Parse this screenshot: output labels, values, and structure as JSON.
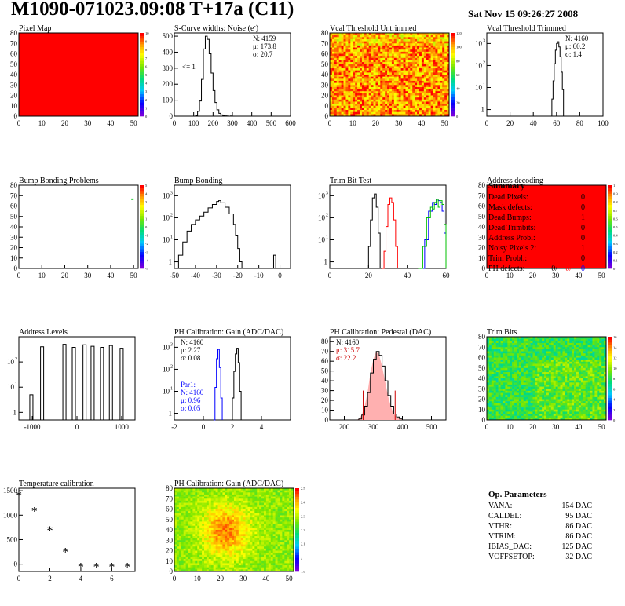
{
  "header": {
    "title": "M1090-071023.09:08 T+17a (C11)",
    "date": "Sat Nov 15 09:26:27 2008"
  },
  "colors": {
    "red": "#ff0000",
    "black": "#000000",
    "blue": "#0000ff",
    "green": "#00c000",
    "pedestal_text": "#cc0000"
  },
  "summary": {
    "title": "Summary",
    "rows": [
      {
        "label": "Dead Pixels:",
        "value": "0"
      },
      {
        "label": "Mask defects:",
        "value": "0"
      },
      {
        "label": "Dead Bumps:",
        "value": "1"
      },
      {
        "label": "Dead Trimbits:",
        "value": "0"
      },
      {
        "label": "Address Probl:",
        "value": "0"
      },
      {
        "label": "Noisy Pixels 2:",
        "value": "1"
      },
      {
        "label": "Trim Probl.:",
        "value": "0"
      }
    ],
    "ph_label": "PH defects:",
    "ph_values": [
      "0/",
      "0/",
      "0"
    ]
  },
  "op_params": {
    "title": "Op. Parameters",
    "rows": [
      {
        "label": "VANA:",
        "value": "154 DAC"
      },
      {
        "label": "CALDEL:",
        "value": "95 DAC"
      },
      {
        "label": "VTHR:",
        "value": "86 DAC"
      },
      {
        "label": "VTRIM:",
        "value": "86 DAC"
      },
      {
        "label": "IBIAS_DAC:",
        "value": "125 DAC"
      },
      {
        "label": "VOFFSETOP:",
        "value": "32 DAC"
      }
    ]
  },
  "chart_data": [
    {
      "id": "pixel-map",
      "type": "heatmap",
      "title": "Pixel Map",
      "xlim": [
        0,
        52
      ],
      "ylim": [
        0,
        80
      ],
      "xticks": [
        0,
        10,
        20,
        30,
        40,
        50
      ],
      "yticks": [
        0,
        10,
        20,
        30,
        40,
        50,
        60,
        70,
        80
      ],
      "fill": "uniform-10",
      "palette_ticks": [
        "0",
        "1",
        "2",
        "3",
        "4",
        "5",
        "6",
        "7",
        "8",
        "9",
        "10"
      ]
    },
    {
      "id": "scurve-noise",
      "type": "line",
      "title": "S-Curve widths: Noise (e",
      "title_sup": "-",
      "xlim": [
        0,
        600
      ],
      "ylim": [
        0,
        520
      ],
      "xticks": [
        0,
        100,
        200,
        300,
        400,
        500,
        600
      ],
      "yticks": [
        0,
        100,
        200,
        300,
        400,
        500
      ],
      "stats": [
        "N: 4159",
        "μ: 173.8",
        "σ: 20.7"
      ],
      "annotation": "<= 1",
      "series": [
        {
          "color": "black",
          "x": [
            100,
            110,
            120,
            130,
            140,
            150,
            160,
            170,
            180,
            190,
            200,
            210,
            220,
            230,
            240,
            250,
            260,
            270,
            280,
            290,
            300
          ],
          "y": [
            0,
            5,
            30,
            95,
            230,
            420,
            500,
            480,
            390,
            270,
            160,
            85,
            40,
            18,
            8,
            4,
            2,
            1,
            0,
            1,
            0
          ]
        }
      ]
    },
    {
      "id": "vcal-untrimmed",
      "type": "heatmap",
      "title": "Vcal Threshold Untrimmed",
      "xlim": [
        0,
        52
      ],
      "ylim": [
        0,
        80
      ],
      "xticks": [
        0,
        10,
        20,
        30,
        40,
        50
      ],
      "yticks": [
        0,
        10,
        20,
        30,
        40,
        50,
        60,
        70,
        80
      ],
      "fill": "noise-high",
      "palette_ticks": [
        "0",
        "20",
        "40",
        "60",
        "80",
        "100",
        "120"
      ]
    },
    {
      "id": "vcal-trimmed",
      "type": "line",
      "title": "Vcal Threshold Trimmed",
      "log": true,
      "xlim": [
        0,
        100
      ],
      "ylim": [
        0.5,
        3000
      ],
      "xticks": [
        0,
        20,
        40,
        60,
        80,
        100
      ],
      "yticks": [
        1,
        10,
        100,
        1000
      ],
      "stats": [
        "N: 4160",
        "μ: 60.2",
        "σ:  1.4"
      ],
      "series": [
        {
          "color": "black",
          "x": [
            55,
            56,
            57,
            58,
            59,
            60,
            61,
            62,
            63,
            64,
            65,
            66
          ],
          "y": [
            0.5,
            3,
            20,
            120,
            500,
            1000,
            1200,
            700,
            250,
            50,
            8,
            0.5
          ]
        }
      ]
    },
    {
      "id": "bump-bonding-problems",
      "type": "heatmap",
      "title": "Bump Bonding Problems",
      "xlim": [
        0,
        52
      ],
      "ylim": [
        0,
        80
      ],
      "xticks": [
        0,
        10,
        20,
        30,
        40,
        50
      ],
      "yticks": [
        0,
        10,
        20,
        30,
        40,
        50,
        60,
        70,
        80
      ],
      "fill": "single-point",
      "points": [
        {
          "x": 49.5,
          "y": 66.5
        }
      ],
      "palette_ticks": [
        "-5",
        "-4",
        "-3",
        "-2",
        "-1",
        "0",
        "1",
        "2",
        "3",
        "4",
        "5"
      ]
    },
    {
      "id": "bump-bonding",
      "type": "line",
      "title": "Bump Bonding",
      "log": true,
      "xlim": [
        -50,
        5
      ],
      "ylim": [
        0.5,
        3000
      ],
      "xticks": [
        -50,
        -40,
        -30,
        -20,
        -10,
        0
      ],
      "yticks": [
        1,
        10,
        100,
        1000
      ],
      "series": [
        {
          "color": "black",
          "x": [
            -49,
            -48,
            -46,
            -44,
            -42,
            -40,
            -38,
            -36,
            -34,
            -32,
            -30,
            -29,
            -28,
            -26,
            -24,
            -22,
            -21,
            -20,
            -19,
            -18,
            -3,
            -2
          ],
          "y": [
            0.5,
            2,
            8,
            25,
            50,
            80,
            120,
            180,
            280,
            400,
            550,
            600,
            480,
            300,
            150,
            50,
            15,
            4,
            1,
            0.5,
            2,
            0.5
          ]
        }
      ]
    },
    {
      "id": "trim-bit-test",
      "type": "line",
      "title": "Trim Bit Test",
      "log": true,
      "xlim": [
        0,
        60
      ],
      "ylim": [
        0.5,
        3000
      ],
      "xticks": [
        0,
        20,
        40,
        60
      ],
      "yticks": [
        1,
        10,
        100,
        1000
      ],
      "series": [
        {
          "color": "black",
          "x": [
            19,
            20,
            21,
            22,
            23,
            24,
            25,
            26
          ],
          "y": [
            0.5,
            5,
            80,
            800,
            1200,
            300,
            20,
            0.5
          ]
        },
        {
          "color": "red",
          "x": [
            27,
            28,
            29,
            30,
            31,
            32,
            33,
            34,
            35
          ],
          "y": [
            0.5,
            3,
            40,
            400,
            800,
            500,
            80,
            5,
            0.5
          ]
        },
        {
          "color": "blue",
          "x": [
            47,
            49,
            51,
            53,
            54,
            55,
            56,
            57,
            58,
            59,
            60
          ],
          "y": [
            0.5,
            10,
            200,
            500,
            400,
            700,
            600,
            500,
            200,
            20,
            0.5
          ]
        },
        {
          "color": "green",
          "x": [
            46,
            48,
            50,
            52,
            53,
            54,
            55,
            56,
            57,
            58,
            59,
            60
          ],
          "y": [
            0.5,
            5,
            100,
            300,
            250,
            500,
            700,
            300,
            600,
            400,
            50,
            0.5
          ]
        }
      ]
    },
    {
      "id": "address-decoding",
      "type": "heatmap",
      "title": "Address decoding",
      "xlim": [
        0,
        52
      ],
      "ylim": [
        0,
        80
      ],
      "xticks": [
        0,
        10,
        20,
        30,
        40,
        50
      ],
      "yticks": [
        0,
        10,
        20,
        30,
        40,
        50,
        60,
        70,
        80
      ],
      "fill": "uniform-1",
      "palette_ticks": [
        "0",
        "0.1",
        "0.2",
        "0.3",
        "0.4",
        "0.5",
        "0.6",
        "0.7",
        "0.8",
        "0.9",
        "1"
      ]
    },
    {
      "id": "address-levels",
      "type": "line",
      "title": "Address Levels",
      "log": true,
      "xlim": [
        -1300,
        1300
      ],
      "ylim": [
        0.5,
        1000
      ],
      "xticks": [
        -1000,
        0,
        1000
      ],
      "yticks": [
        1,
        10,
        100
      ],
      "series": [
        {
          "color": "black",
          "peaks": [
            -1020,
            -780,
            -280,
            -70,
            170,
            350,
            560,
            760,
            1000
          ],
          "heights": [
            5,
            400,
            500,
            380,
            480,
            420,
            380,
            450,
            350
          ]
        }
      ]
    },
    {
      "id": "ph-gain",
      "type": "line",
      "title": "PH Calibration: Gain (ADC/DAC)",
      "log": true,
      "xlim": [
        -2,
        6
      ],
      "ylim": [
        0.5,
        3000
      ],
      "xticks": [
        -2,
        0,
        2,
        4
      ],
      "yticks": [
        1,
        10,
        100,
        1000
      ],
      "stats": [
        "N: 4160",
        "μ: 2.27",
        "σ: 0.08"
      ],
      "stats2": [
        "Par1:",
        "N: 4160",
        "μ: 0.96",
        "σ: 0.05"
      ],
      "series": [
        {
          "color": "black",
          "x": [
            1.9,
            2.0,
            2.1,
            2.2,
            2.3,
            2.4,
            2.5,
            2.6
          ],
          "y": [
            0.5,
            5,
            80,
            500,
            900,
            200,
            10,
            0.5
          ]
        },
        {
          "color": "blue",
          "x": [
            0.7,
            0.8,
            0.9,
            1.0,
            1.1,
            1.2,
            1.3
          ],
          "y": [
            0.5,
            15,
            300,
            800,
            120,
            5,
            0.5
          ]
        }
      ]
    },
    {
      "id": "ph-pedestal",
      "type": "line",
      "title": "PH Calibration: Pedestal (DAC)",
      "xlim": [
        150,
        550
      ],
      "ylim": [
        0,
        85
      ],
      "xticks": [
        200,
        300,
        400,
        500
      ],
      "yticks": [
        0,
        10,
        20,
        30,
        40,
        50,
        60,
        70,
        80
      ],
      "stats": [
        "N: 4160",
        "μ: 315.7",
        "σ: 22.2"
      ],
      "markers": [
        265,
        375
      ],
      "series": [
        {
          "color": "black",
          "x": [
            240,
            250,
            260,
            270,
            280,
            290,
            300,
            310,
            320,
            330,
            340,
            350,
            360,
            370,
            380,
            390,
            400
          ],
          "y": [
            0,
            1,
            5,
            14,
            28,
            48,
            62,
            70,
            66,
            55,
            40,
            25,
            14,
            6,
            3,
            1,
            0
          ]
        }
      ]
    },
    {
      "id": "trim-bits",
      "type": "heatmap",
      "title": "Trim Bits",
      "xlim": [
        0,
        52
      ],
      "ylim": [
        0,
        80
      ],
      "xticks": [
        0,
        10,
        20,
        30,
        40,
        50
      ],
      "yticks": [
        0,
        10,
        20,
        30,
        40,
        50,
        60,
        70,
        80
      ],
      "fill": "noise-mid",
      "palette_ticks": [
        "0",
        "2",
        "4",
        "6",
        "8",
        "10",
        "12",
        "14",
        "16"
      ]
    },
    {
      "id": "temperature-calibration",
      "type": "scatter",
      "title": "Temperature calibration",
      "xlim": [
        0,
        7.5
      ],
      "ylim": [
        -150,
        1550
      ],
      "xticks": [
        0,
        2,
        4,
        6
      ],
      "yticks": [
        0,
        500,
        1000,
        1500
      ],
      "x": [
        0,
        1,
        2,
        3,
        4,
        5,
        6,
        7
      ],
      "y": [
        1400,
        1080,
        680,
        240,
        -60,
        -60,
        -60,
        -60
      ]
    },
    {
      "id": "ph-gain-map",
      "type": "heatmap",
      "title": "PH Calibration: Gain (ADC/DAC)",
      "xlim": [
        0,
        52
      ],
      "ylim": [
        0,
        80
      ],
      "xticks": [
        0,
        10,
        20,
        30,
        40,
        50
      ],
      "yticks": [
        0,
        10,
        20,
        30,
        40,
        50,
        60,
        70,
        80
      ],
      "fill": "noise-center",
      "palette_ticks": [
        "1.9",
        "2",
        "2.1",
        "2.2",
        "2.3",
        "2.4",
        "2.5"
      ]
    }
  ]
}
